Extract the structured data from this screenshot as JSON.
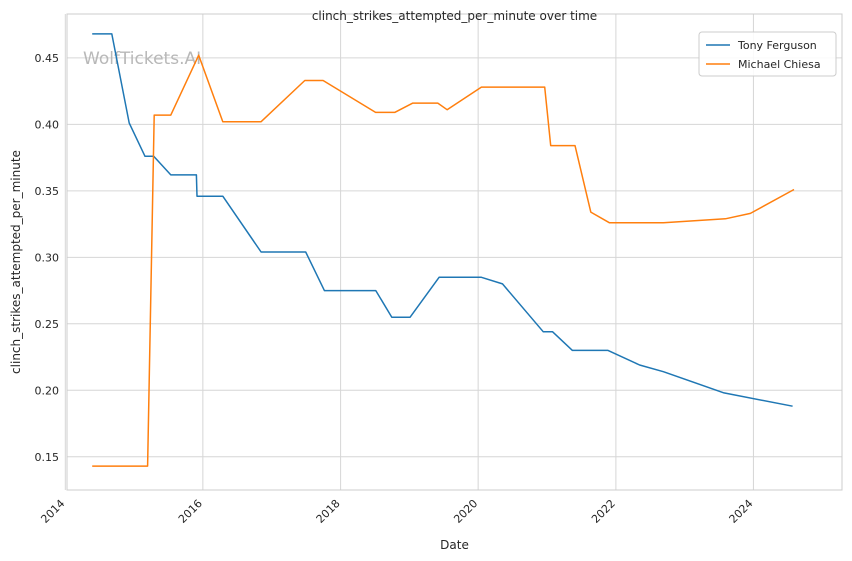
{
  "chart_data": {
    "type": "line",
    "title": "clinch_strikes_attempted_per_minute over time",
    "xlabel": "Date",
    "ylabel": "clinch_strikes_attempted_per_minute",
    "watermark": "WolfTickets.AI",
    "x_ticks": [
      "2014",
      "2016",
      "2018",
      "2020",
      "2022",
      "2024"
    ],
    "y_ticks": [
      "0.15",
      "0.20",
      "0.25",
      "0.30",
      "0.35",
      "0.40",
      "0.45"
    ],
    "xlim": [
      "2014-01-10",
      "2025-04-15"
    ],
    "ylim": [
      0.125,
      0.483
    ],
    "grid": true,
    "legend_position": "top-right",
    "series": [
      {
        "name": "Tony Ferguson",
        "color": "#1f77b4",
        "points": [
          [
            "2014-05-24",
            0.468
          ],
          [
            "2014-09-05",
            0.468
          ],
          [
            "2014-12-06",
            0.401
          ],
          [
            "2015-02-28",
            0.376
          ],
          [
            "2015-04-15",
            0.376
          ],
          [
            "2015-07-15",
            0.362
          ],
          [
            "2015-11-28",
            0.362
          ],
          [
            "2015-12-01",
            0.346
          ],
          [
            "2016-04-16",
            0.346
          ],
          [
            "2016-11-05",
            0.304
          ],
          [
            "2017-06-30",
            0.304
          ],
          [
            "2017-10-07",
            0.275
          ],
          [
            "2018-07-07",
            0.275
          ],
          [
            "2018-09-30",
            0.255
          ],
          [
            "2019-01-05",
            0.255
          ],
          [
            "2019-06-08",
            0.285
          ],
          [
            "2020-01-18",
            0.285
          ],
          [
            "2020-05-09",
            0.28
          ],
          [
            "2020-12-12",
            0.244
          ],
          [
            "2021-01-30",
            0.244
          ],
          [
            "2021-05-15",
            0.23
          ],
          [
            "2021-11-20",
            0.23
          ],
          [
            "2022-05-07",
            0.219
          ],
          [
            "2022-09-10",
            0.214
          ],
          [
            "2023-07-29",
            0.198
          ],
          [
            "2024-07-27",
            0.188
          ]
        ]
      },
      {
        "name": "Michael Chiesa",
        "color": "#ff7f0e",
        "points": [
          [
            "2014-05-24",
            0.143
          ],
          [
            "2015-03-14",
            0.143
          ],
          [
            "2015-04-18",
            0.407
          ],
          [
            "2015-07-15",
            0.407
          ],
          [
            "2015-12-10",
            0.452
          ],
          [
            "2016-04-16",
            0.402
          ],
          [
            "2016-11-05",
            0.402
          ],
          [
            "2017-06-25",
            0.433
          ],
          [
            "2017-09-30",
            0.433
          ],
          [
            "2018-07-06",
            0.409
          ],
          [
            "2018-10-15",
            0.409
          ],
          [
            "2019-01-19",
            0.416
          ],
          [
            "2019-06-01",
            0.416
          ],
          [
            "2019-07-20",
            0.411
          ],
          [
            "2020-01-18",
            0.428
          ],
          [
            "2020-12-19",
            0.428
          ],
          [
            "2021-01-20",
            0.384
          ],
          [
            "2021-05-29",
            0.384
          ],
          [
            "2021-08-21",
            0.334
          ],
          [
            "2021-11-27",
            0.326
          ],
          [
            "2022-09-10",
            0.326
          ],
          [
            "2023-08-05",
            0.329
          ],
          [
            "2023-12-16",
            0.333
          ],
          [
            "2024-08-03",
            0.351
          ]
        ]
      }
    ]
  }
}
